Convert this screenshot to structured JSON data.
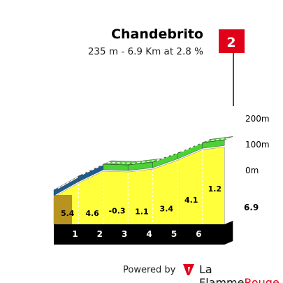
{
  "header": {
    "climb_name": "Chandebrito",
    "stats": "235 m - 6.9 Km at 2.8 %",
    "category": "2"
  },
  "colors": {
    "flag": "#e0001a",
    "grade_low": "#ffff3c",
    "grade_mid": "#4cd235",
    "grade_high": "#1f5c8a",
    "base": "#000000"
  },
  "chart_data": {
    "type": "area",
    "x_unit": "km",
    "y_unit": "m",
    "km_markers": [
      "1",
      "2",
      "3",
      "4",
      "5",
      "6"
    ],
    "total_distance_label": "6.9",
    "segments": [
      {
        "gradient": 5.4,
        "label": "5.4",
        "color": "#1f5c8a"
      },
      {
        "gradient": 4.6,
        "label": "4.6",
        "color": "#1f5c8a"
      },
      {
        "gradient": -0.3,
        "label": "-0.3",
        "color": "#4cd235"
      },
      {
        "gradient": 1.1,
        "label": "1.1",
        "color": "#4cd235"
      },
      {
        "gradient": 3.4,
        "label": "3.4",
        "color": "#4cd235"
      },
      {
        "gradient": 4.1,
        "label": "4.1",
        "color": "#4cd235"
      },
      {
        "gradient": 1.2,
        "label": "1.2",
        "color": "#4cd235"
      }
    ],
    "y_ticks": [
      {
        "value": 200,
        "label": "200m"
      },
      {
        "value": 100,
        "label": "100m"
      },
      {
        "value": 0,
        "label": "0m"
      }
    ]
  },
  "footer": {
    "powered_by": "Powered by",
    "brand_part1": "La Flamme",
    "brand_part2": "Rouge"
  }
}
